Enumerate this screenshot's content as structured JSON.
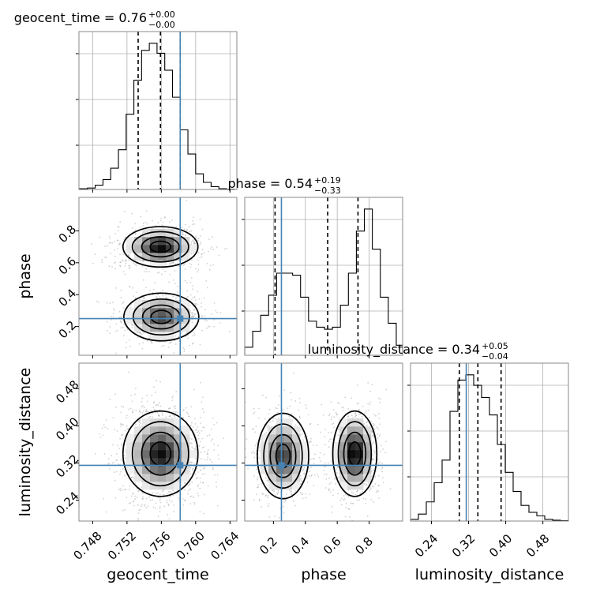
{
  "chart_data": {
    "type": "corner",
    "parameters": [
      {
        "name": "geocent_time",
        "range": [
          0.7464,
          0.7648
        ],
        "ticks": [
          "0.748",
          "0.752",
          "0.756",
          "0.760",
          "0.764"
        ],
        "tick_values": [
          0.748,
          0.752,
          0.756,
          0.76,
          0.764
        ],
        "title": {
          "label": "geocent_time = 0.76",
          "plus": "+0.00",
          "minus": "−0.00"
        },
        "quantiles": [
          0.7533,
          0.7559,
          0.7582
        ],
        "truth": 0.7582,
        "hist_edges": [
          0.7465,
          0.7474,
          0.7483,
          0.7492,
          0.7501,
          0.751,
          0.7519,
          0.7528,
          0.7537,
          0.7546,
          0.7555,
          0.7564,
          0.7573,
          0.7582,
          0.7591,
          0.76,
          0.7609,
          0.7618,
          0.7627,
          0.7636,
          0.7645
        ],
        "hist_counts": [
          0.5,
          1,
          3,
          7,
          15,
          28,
          53,
          77,
          98,
          103,
          96,
          84,
          65,
          42,
          25,
          11,
          5,
          2,
          0.5,
          0.2
        ]
      },
      {
        "name": "phase",
        "range": [
          0.02,
          1.01
        ],
        "ticks": [
          "0.2",
          "0.4",
          "0.6",
          "0.8"
        ],
        "tick_values": [
          0.2,
          0.4,
          0.6,
          0.8
        ],
        "title": {
          "label": "phase = 0.54",
          "plus": "+0.19",
          "minus": "−0.33"
        },
        "quantiles": [
          0.21,
          0.54,
          0.73
        ],
        "truth": 0.25,
        "hist_edges": [
          0.02,
          0.07,
          0.12,
          0.17,
          0.22,
          0.27,
          0.32,
          0.37,
          0.42,
          0.47,
          0.52,
          0.57,
          0.62,
          0.67,
          0.72,
          0.77,
          0.82,
          0.87,
          0.92,
          0.97,
          1.01
        ],
        "hist_counts": [
          4,
          12,
          20,
          30,
          41,
          41,
          40,
          29,
          17,
          14,
          13,
          14,
          25,
          41,
          62,
          73,
          53,
          29,
          16,
          5
        ]
      },
      {
        "name": "luminosity_distance",
        "range": [
          0.195,
          0.535
        ],
        "ticks": [
          "0.24",
          "0.32",
          "0.40",
          "0.48"
        ],
        "tick_values": [
          0.24,
          0.32,
          0.4,
          0.48
        ],
        "title": {
          "label": "luminosity_distance = 0.34",
          "plus": "+0.05",
          "minus": "−0.04"
        },
        "quantiles": [
          0.3,
          0.34,
          0.39
        ],
        "truth": 0.315,
        "hist_edges": [
          0.195,
          0.212,
          0.229,
          0.246,
          0.263,
          0.28,
          0.297,
          0.314,
          0.331,
          0.348,
          0.365,
          0.382,
          0.399,
          0.416,
          0.433,
          0.45,
          0.467,
          0.484,
          0.501,
          0.518,
          0.535
        ],
        "hist_counts": [
          1,
          4,
          11,
          22,
          35,
          63,
          81,
          84,
          78,
          71,
          61,
          44,
          28,
          17,
          9,
          5,
          3,
          1,
          0.5,
          0.2
        ]
      }
    ],
    "colors": {
      "truth": "#4682b4",
      "hist": "#000000",
      "quantile": "#000000",
      "grid": "#b0b0b0"
    },
    "grid": true
  }
}
